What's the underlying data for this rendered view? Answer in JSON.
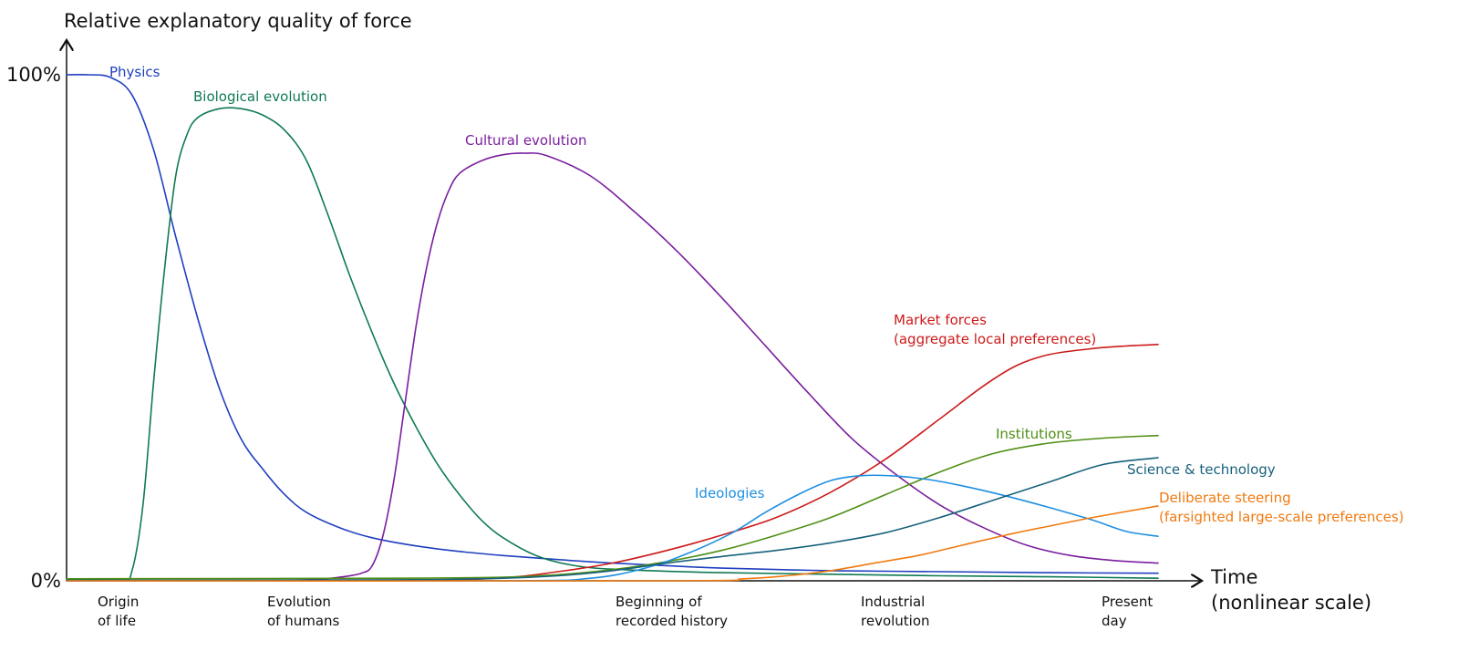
{
  "chart_data": {
    "type": "line",
    "title": "",
    "ylabel": "Relative explanatory quality of force",
    "xlabel_lines": [
      "Time",
      "(nonlinear scale)"
    ],
    "ylim": [
      0,
      100
    ],
    "xlim": [
      0,
      100
    ],
    "y_tick_labels": [
      "100%",
      "0%"
    ],
    "grid": false,
    "x_events": [
      {
        "x": 5,
        "lines": [
          "Origin",
          "of life"
        ]
      },
      {
        "x": 25,
        "lines": [
          "Evolution",
          "of humans"
        ]
      },
      {
        "x": 56,
        "lines": [
          "Beginning of",
          "recorded history"
        ]
      },
      {
        "x": 76,
        "lines": [
          "Industrial",
          "revolution"
        ]
      },
      {
        "x": 97,
        "lines": [
          "Present",
          "day"
        ]
      }
    ],
    "series": [
      {
        "name": "Physics",
        "label_lines": [
          "Physics"
        ],
        "color": "#1f3fbf",
        "points": [
          [
            0,
            100
          ],
          [
            2,
            100
          ],
          [
            4,
            99.5
          ],
          [
            6,
            96
          ],
          [
            8,
            85
          ],
          [
            10,
            68
          ],
          [
            12,
            52
          ],
          [
            14,
            38
          ],
          [
            16,
            28
          ],
          [
            18,
            22
          ],
          [
            20,
            17
          ],
          [
            22,
            13.5
          ],
          [
            25,
            10.5
          ],
          [
            28,
            8.5
          ],
          [
            32,
            6.9
          ],
          [
            36,
            5.8
          ],
          [
            40,
            5
          ],
          [
            45,
            4.2
          ],
          [
            50,
            3.5
          ],
          [
            55,
            3
          ],
          [
            60,
            2.5
          ],
          [
            70,
            2
          ],
          [
            80,
            1.8
          ],
          [
            90,
            1.6
          ],
          [
            100,
            1.5
          ]
        ]
      },
      {
        "name": "Biological evolution",
        "label_lines": [
          "Biological evolution"
        ],
        "color": "#0f7a52",
        "points": [
          [
            0,
            0.3
          ],
          [
            5,
            0.3
          ],
          [
            6,
            2
          ],
          [
            7,
            15
          ],
          [
            8,
            40
          ],
          [
            9,
            62
          ],
          [
            10,
            80
          ],
          [
            11,
            88
          ],
          [
            12,
            91.5
          ],
          [
            14,
            93.3
          ],
          [
            16,
            93.3
          ],
          [
            18,
            92
          ],
          [
            20,
            89
          ],
          [
            22,
            83
          ],
          [
            24,
            72
          ],
          [
            26,
            60
          ],
          [
            28,
            49
          ],
          [
            30,
            39
          ],
          [
            32,
            30.5
          ],
          [
            34,
            23
          ],
          [
            36,
            17
          ],
          [
            38,
            12
          ],
          [
            40,
            8.5
          ],
          [
            43,
            5
          ],
          [
            46,
            3.2
          ],
          [
            50,
            2.3
          ],
          [
            60,
            1.6
          ],
          [
            70,
            1.3
          ],
          [
            80,
            1
          ],
          [
            90,
            0.8
          ],
          [
            100,
            0.5
          ]
        ]
      },
      {
        "name": "Cultural evolution",
        "label_lines": [
          "Cultural evolution"
        ],
        "color": "#7a1e9e",
        "points": [
          [
            0,
            0
          ],
          [
            15,
            0
          ],
          [
            22,
            0.2
          ],
          [
            25,
            0.7
          ],
          [
            27,
            1.5
          ],
          [
            28,
            3
          ],
          [
            29,
            9
          ],
          [
            30,
            20
          ],
          [
            31,
            35
          ],
          [
            32,
            50
          ],
          [
            33,
            62
          ],
          [
            34,
            71
          ],
          [
            35,
            77
          ],
          [
            36,
            80.5
          ],
          [
            38,
            83
          ],
          [
            40,
            84.2
          ],
          [
            42,
            84.5
          ],
          [
            44,
            84
          ],
          [
            48,
            80
          ],
          [
            52,
            73
          ],
          [
            56,
            65
          ],
          [
            60,
            56
          ],
          [
            64,
            46.5
          ],
          [
            68,
            37
          ],
          [
            72,
            28
          ],
          [
            76,
            21
          ],
          [
            80,
            15
          ],
          [
            84,
            10.5
          ],
          [
            88,
            7
          ],
          [
            92,
            5
          ],
          [
            96,
            4
          ],
          [
            100,
            3.5
          ]
        ]
      },
      {
        "name": "Market forces",
        "label_lines": [
          "Market forces",
          "(aggregate local preferences)"
        ],
        "color": "#cc1a1a",
        "points": [
          [
            0,
            0
          ],
          [
            30,
            0
          ],
          [
            40,
            0.6
          ],
          [
            45,
            1.8
          ],
          [
            50,
            3.5
          ],
          [
            55,
            6
          ],
          [
            60,
            9
          ],
          [
            65,
            12.5
          ],
          [
            70,
            17.5
          ],
          [
            75,
            24
          ],
          [
            80,
            32
          ],
          [
            84,
            38.5
          ],
          [
            87,
            42.5
          ],
          [
            90,
            44.7
          ],
          [
            94,
            45.9
          ],
          [
            97,
            46.4
          ],
          [
            100,
            46.7
          ]
        ]
      },
      {
        "name": "Institutions",
        "label_lines": [
          "Institutions"
        ],
        "color": "#4e8f14",
        "points": [
          [
            0,
            0.4
          ],
          [
            30,
            0.5
          ],
          [
            40,
            0.7
          ],
          [
            45,
            1.2
          ],
          [
            50,
            2.2
          ],
          [
            55,
            3.8
          ],
          [
            60,
            6
          ],
          [
            65,
            9
          ],
          [
            70,
            12.5
          ],
          [
            75,
            17
          ],
          [
            80,
            21.5
          ],
          [
            85,
            25.2
          ],
          [
            90,
            27.2
          ],
          [
            95,
            28.2
          ],
          [
            100,
            28.7
          ]
        ]
      },
      {
        "name": "Ideologies",
        "label_lines": [
          "Ideologies"
        ],
        "color": "#1e8fe0",
        "points": [
          [
            0,
            0
          ],
          [
            40,
            0
          ],
          [
            48,
            0.5
          ],
          [
            53,
            2.5
          ],
          [
            57,
            5.5
          ],
          [
            61,
            9.5
          ],
          [
            64,
            13.5
          ],
          [
            67,
            17
          ],
          [
            70,
            19.8
          ],
          [
            73,
            20.8
          ],
          [
            76,
            20.7
          ],
          [
            79,
            20
          ],
          [
            82,
            18.8
          ],
          [
            86,
            16.8
          ],
          [
            90,
            14.5
          ],
          [
            94,
            12
          ],
          [
            97,
            9.8
          ],
          [
            100,
            8.8
          ]
        ]
      },
      {
        "name": "Science & technology",
        "label_lines": [
          "Science & technology"
        ],
        "color": "#17617c",
        "points": [
          [
            0,
            0.1
          ],
          [
            30,
            0.2
          ],
          [
            40,
            0.5
          ],
          [
            45,
            1
          ],
          [
            50,
            2
          ],
          [
            55,
            3.5
          ],
          [
            60,
            4.8
          ],
          [
            65,
            6
          ],
          [
            70,
            7.5
          ],
          [
            75,
            9.5
          ],
          [
            80,
            12.5
          ],
          [
            85,
            16
          ],
          [
            90,
            19.5
          ],
          [
            95,
            23
          ],
          [
            100,
            24.3
          ]
        ]
      },
      {
        "name": "Deliberate steering",
        "label_lines": [
          "Deliberate steering",
          "(farsighted large-scale preferences)"
        ],
        "color": "#f07a10",
        "points": [
          [
            0,
            0
          ],
          [
            55,
            0
          ],
          [
            62,
            0.4
          ],
          [
            66,
            1
          ],
          [
            70,
            2
          ],
          [
            74,
            3.5
          ],
          [
            78,
            5
          ],
          [
            82,
            7
          ],
          [
            86,
            9
          ],
          [
            90,
            10.8
          ],
          [
            94,
            12.5
          ],
          [
            100,
            14.8
          ]
        ]
      }
    ]
  }
}
